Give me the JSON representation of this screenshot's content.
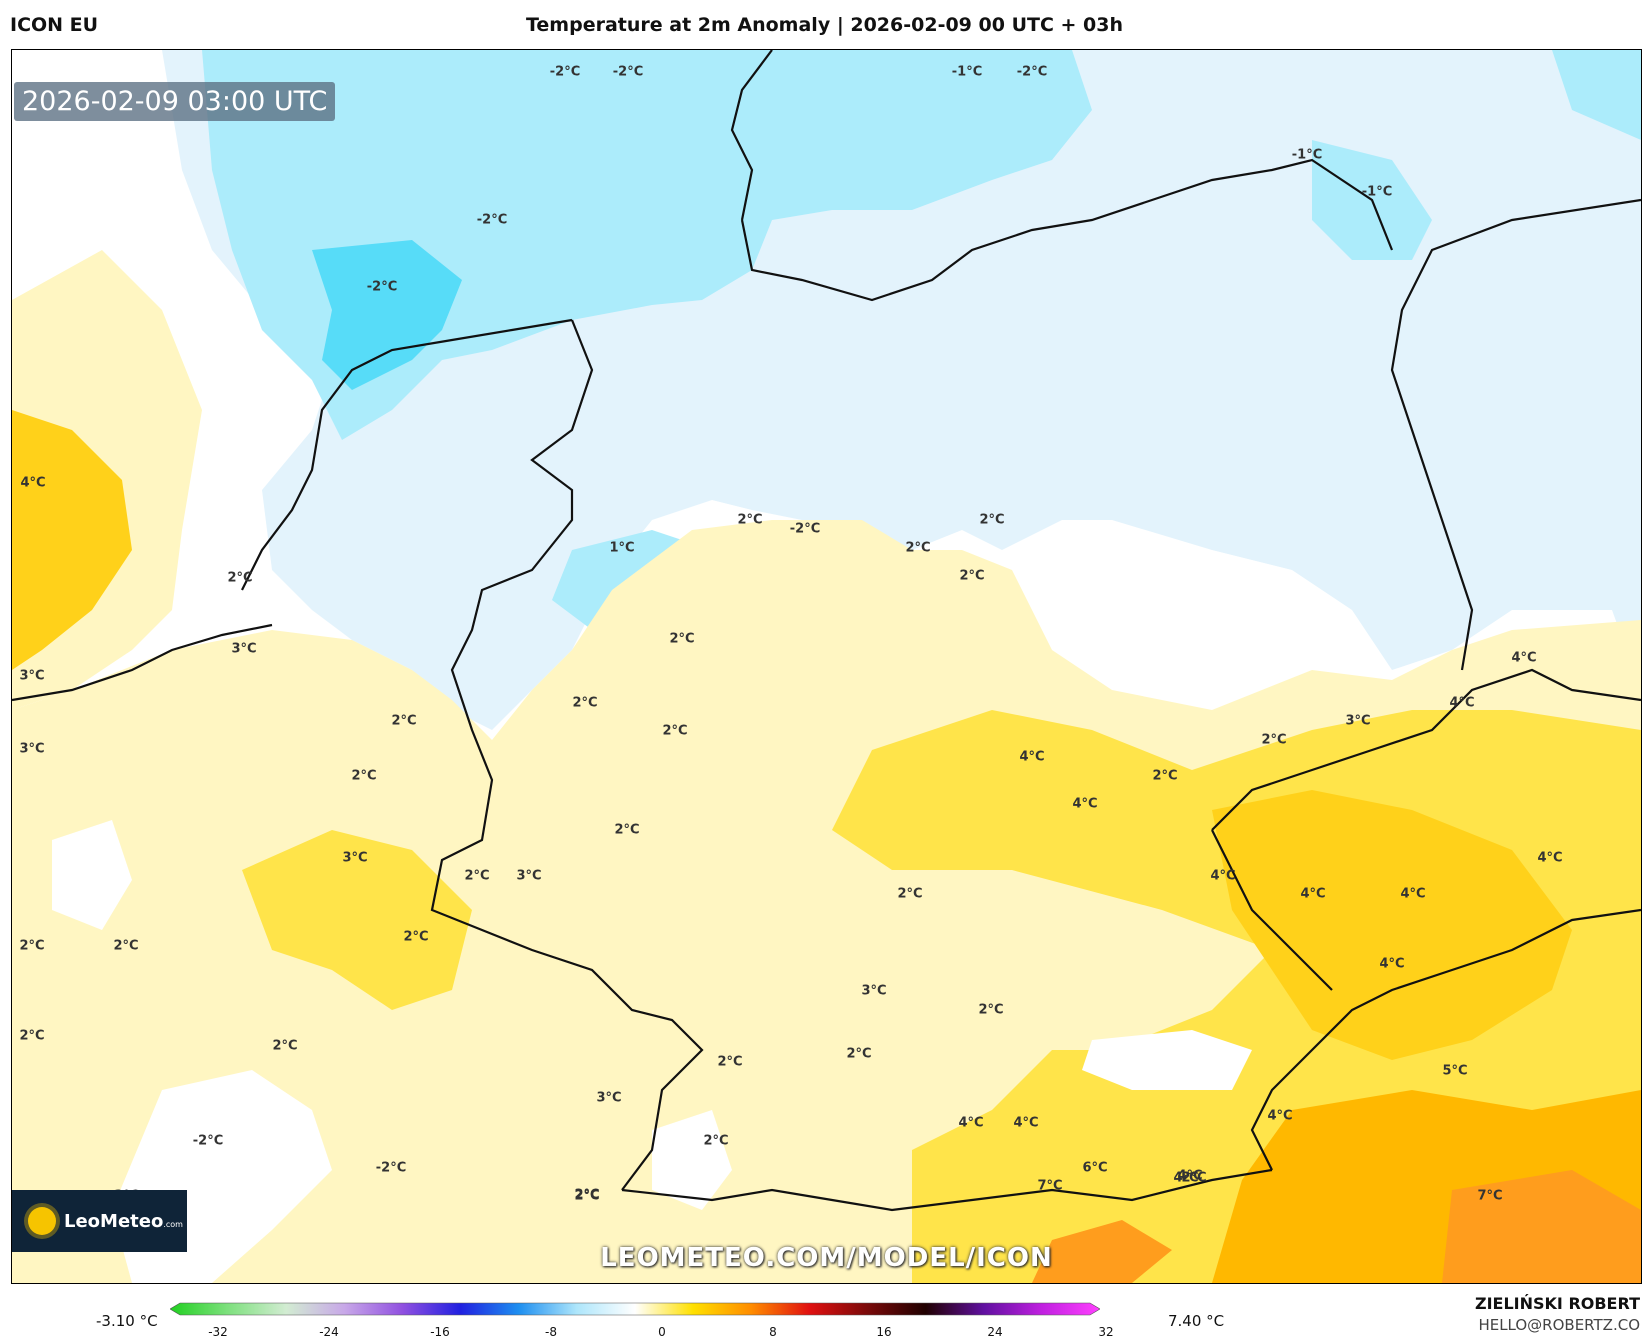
{
  "header": {
    "model": "ICON EU",
    "title": "Temperature at 2m Anomaly | 2026-02-09 00 UTC + 03h"
  },
  "map": {
    "valid_time": "2026-02-09 03:00 UTC",
    "watermark": "LEOMETEO.COM/MODEL/ICON",
    "logo": {
      "name": "LeoMeteo",
      "suffix": ".com"
    },
    "labels": [
      "-2°C",
      "-2°C",
      "-1°C",
      "-2°C",
      "-1°C",
      "-1°C",
      "-2°C",
      "-2°C",
      "4°C",
      "2°C",
      "2°C",
      "-2°C",
      "1°C",
      "2°C",
      "2°C",
      "2°C",
      "2°C",
      "3°C",
      "3°C",
      "2°C",
      "2°C",
      "2°C",
      "3°C",
      "4°C",
      "3°C",
      "4°C",
      "2°C",
      "4°C",
      "2°C",
      "2°C",
      "4°C",
      "4°C",
      "3°C",
      "4°C",
      "2°C",
      "2°C",
      "3°C",
      "2°C",
      "2°C",
      "4°C",
      "4°C",
      "4°C",
      "2°C",
      "2°C",
      "2°C",
      "3°C",
      "2°C",
      "2°C",
      "2°C",
      "2°C",
      "5°C",
      "3°C",
      "4°C",
      "4°C",
      "4°C",
      "2°C",
      "2°C",
      "4°C",
      "2°C",
      "-2°C",
      "-2°C",
      "6°C",
      "7°C",
      "4°C",
      "7°C",
      "-3°C",
      "2°C"
    ],
    "colors": {
      "cold2": "#57dcf8",
      "cold1": "#acecfb",
      "cold0": "#e3f3fc",
      "neutral": "#ffffff",
      "warm1": "#fff6c2",
      "warm2": "#ffe44a",
      "warm3": "#ffd11a",
      "warm4": "#ffb800",
      "warm5": "#ff9d1d"
    }
  },
  "colorbar": {
    "min_label": "-3.10 °C",
    "max_label": "7.40 °C",
    "ticks": [
      "-32",
      "-24",
      "-16",
      "-8",
      "0",
      "8",
      "16",
      "24",
      "32"
    ],
    "stops": [
      "#20d020",
      "#7ee07e",
      "#d2ecd2",
      "#c8a8e8",
      "#9050e0",
      "#2020e0",
      "#1e8ff0",
      "#aee6fb",
      "#ffffff",
      "#ffe000",
      "#ff8c00",
      "#e01010",
      "#7a0a0a",
      "#200000",
      "#6010a0",
      "#c020e0",
      "#ff40ff"
    ]
  },
  "footer": {
    "author": "ZIELIŃSKI ROBERT",
    "email": "HELLO@ROBERTZ.CO"
  }
}
